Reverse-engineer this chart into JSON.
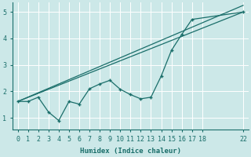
{
  "xlabel": "Humidex (Indice chaleur)",
  "bg_color": "#cce8e8",
  "line_color": "#1a6e6a",
  "grid_color": "#b0d8d8",
  "xlim": [
    -0.5,
    22.5
  ],
  "ylim": [
    0.55,
    5.35
  ],
  "xticks": [
    0,
    1,
    2,
    3,
    4,
    5,
    6,
    7,
    8,
    9,
    10,
    11,
    12,
    13,
    14,
    15,
    16,
    17,
    18,
    22
  ],
  "yticks": [
    1,
    2,
    3,
    4,
    5
  ],
  "line1_x": [
    0,
    1,
    2,
    3,
    4,
    5,
    6,
    7,
    8,
    9,
    10,
    11,
    12,
    13,
    14,
    15,
    16,
    17,
    22
  ],
  "line1_y": [
    1.62,
    1.62,
    1.78,
    1.22,
    0.9,
    1.62,
    1.52,
    2.1,
    2.28,
    2.42,
    2.08,
    1.88,
    1.72,
    1.78,
    2.58,
    3.55,
    4.15,
    4.72,
    5.0
  ],
  "line2_x": [
    0,
    22
  ],
  "line2_y": [
    1.62,
    5.0
  ],
  "line3_x": [
    0,
    22
  ],
  "line3_y": [
    1.62,
    5.25
  ],
  "tick_fontsize": 6.0,
  "xlabel_fontsize": 6.5
}
